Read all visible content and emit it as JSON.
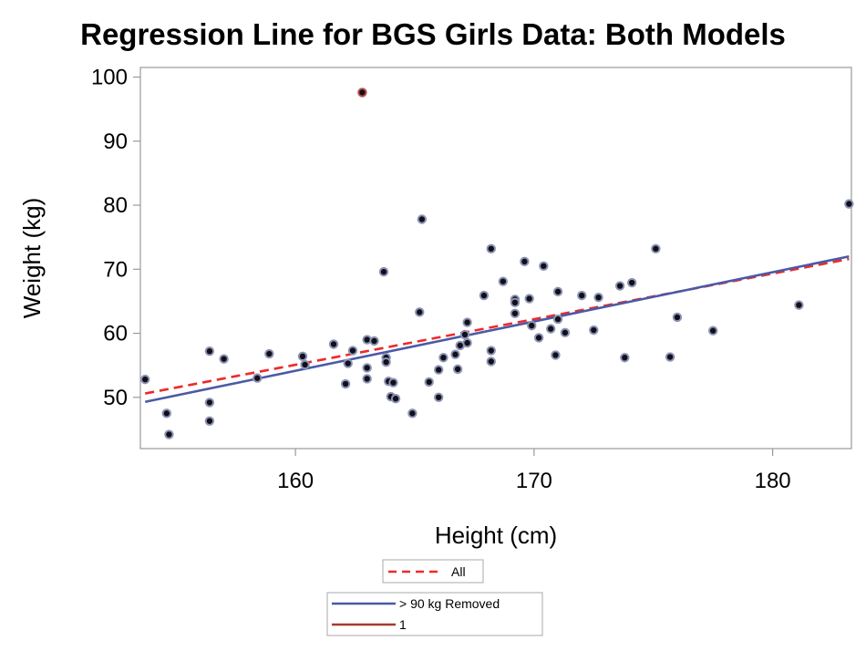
{
  "chart_data": {
    "type": "scatter",
    "title": "Regression Line for BGS Girls Data: Both Models",
    "xlabel": "Height (cm)",
    "ylabel": "Weight (kg)",
    "xlim": [
      153.5,
      183.3
    ],
    "ylim": [
      42,
      101.5
    ],
    "xticks": [
      160,
      170,
      180
    ],
    "yticks": [
      50,
      60,
      70,
      80,
      90,
      100
    ],
    "grid": false,
    "legend_position": "bottom-center",
    "points": [
      {
        "x": 153.7,
        "y": 52.8
      },
      {
        "x": 154.6,
        "y": 47.5
      },
      {
        "x": 154.7,
        "y": 44.2
      },
      {
        "x": 156.4,
        "y": 57.2
      },
      {
        "x": 156.4,
        "y": 49.2
      },
      {
        "x": 156.4,
        "y": 46.3
      },
      {
        "x": 157.0,
        "y": 56.0
      },
      {
        "x": 158.4,
        "y": 53.0
      },
      {
        "x": 158.9,
        "y": 56.8
      },
      {
        "x": 160.3,
        "y": 56.4
      },
      {
        "x": 160.4,
        "y": 55.1
      },
      {
        "x": 161.6,
        "y": 58.3
      },
      {
        "x": 162.1,
        "y": 52.1
      },
      {
        "x": 162.2,
        "y": 55.3
      },
      {
        "x": 162.4,
        "y": 57.3
      },
      {
        "x": 162.8,
        "y": 97.6
      },
      {
        "x": 163.0,
        "y": 59.0
      },
      {
        "x": 163.0,
        "y": 54.6
      },
      {
        "x": 163.0,
        "y": 52.9
      },
      {
        "x": 163.3,
        "y": 58.8
      },
      {
        "x": 163.7,
        "y": 69.6
      },
      {
        "x": 163.8,
        "y": 56.2
      },
      {
        "x": 163.8,
        "y": 55.5
      },
      {
        "x": 163.9,
        "y": 52.5
      },
      {
        "x": 164.0,
        "y": 50.1
      },
      {
        "x": 164.1,
        "y": 52.3
      },
      {
        "x": 164.2,
        "y": 49.8
      },
      {
        "x": 164.9,
        "y": 47.5
      },
      {
        "x": 165.2,
        "y": 63.3
      },
      {
        "x": 165.3,
        "y": 77.8
      },
      {
        "x": 165.6,
        "y": 52.4
      },
      {
        "x": 166.0,
        "y": 54.3
      },
      {
        "x": 166.0,
        "y": 50.0
      },
      {
        "x": 166.2,
        "y": 56.2
      },
      {
        "x": 166.7,
        "y": 56.7
      },
      {
        "x": 166.8,
        "y": 54.4
      },
      {
        "x": 166.9,
        "y": 58.1
      },
      {
        "x": 167.1,
        "y": 59.8
      },
      {
        "x": 167.2,
        "y": 61.7
      },
      {
        "x": 167.2,
        "y": 58.5
      },
      {
        "x": 167.9,
        "y": 65.9
      },
      {
        "x": 168.2,
        "y": 73.2
      },
      {
        "x": 168.2,
        "y": 57.3
      },
      {
        "x": 168.2,
        "y": 55.6
      },
      {
        "x": 168.7,
        "y": 68.1
      },
      {
        "x": 169.2,
        "y": 65.3
      },
      {
        "x": 169.2,
        "y": 64.8
      },
      {
        "x": 169.2,
        "y": 63.1
      },
      {
        "x": 169.6,
        "y": 71.2
      },
      {
        "x": 169.8,
        "y": 65.4
      },
      {
        "x": 169.9,
        "y": 61.2
      },
      {
        "x": 170.2,
        "y": 59.3
      },
      {
        "x": 170.4,
        "y": 70.5
      },
      {
        "x": 170.7,
        "y": 60.7
      },
      {
        "x": 170.9,
        "y": 56.6
      },
      {
        "x": 171.0,
        "y": 66.5
      },
      {
        "x": 171.0,
        "y": 62.2
      },
      {
        "x": 171.3,
        "y": 60.1
      },
      {
        "x": 172.0,
        "y": 65.9
      },
      {
        "x": 172.5,
        "y": 60.5
      },
      {
        "x": 172.7,
        "y": 65.6
      },
      {
        "x": 173.6,
        "y": 67.4
      },
      {
        "x": 173.8,
        "y": 56.2
      },
      {
        "x": 174.1,
        "y": 67.9
      },
      {
        "x": 175.1,
        "y": 73.2
      },
      {
        "x": 175.7,
        "y": 56.3
      },
      {
        "x": 176.0,
        "y": 62.5
      },
      {
        "x": 177.5,
        "y": 60.4
      },
      {
        "x": 181.1,
        "y": 64.4
      },
      {
        "x": 183.2,
        "y": 80.2
      }
    ],
    "lines": [
      {
        "name": "All",
        "color": "#ee2a2a",
        "dash": true,
        "x": [
          153.7,
          183.2
        ],
        "y": [
          50.6,
          71.6
        ]
      },
      {
        "name": "> 90 kg Removed",
        "color": "#4a5aa6",
        "dash": false,
        "x": [
          153.7,
          183.2
        ],
        "y": [
          49.3,
          72.0
        ]
      }
    ],
    "marker_colors": {
      "outline": "#8d93b5",
      "fill": "#101018",
      "outlier_outline": "#b8524a"
    },
    "legend_1": [
      {
        "label": "All",
        "color": "#ee2a2a",
        "style": "dashed"
      }
    ],
    "legend_2": [
      {
        "label": "> 90 kg Removed",
        "color": "#4a5aa6",
        "style": "solid"
      },
      {
        "label": "1",
        "color": "#a23a2e",
        "style": "solid"
      }
    ]
  }
}
